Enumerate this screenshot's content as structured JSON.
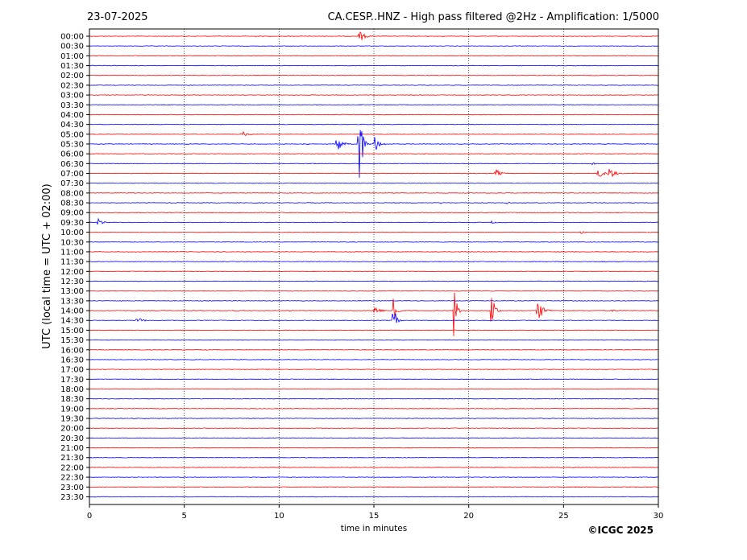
{
  "header": {
    "date": "23-07-2025",
    "title": "CA.CESP..HNZ - High pass filtered @2Hz - Amplification: 1/5000"
  },
  "footer": {
    "copyright": "©ICGC 2025"
  },
  "chart_data": {
    "type": "line",
    "title": "CA.CESP..HNZ - High pass filtered @2Hz - Amplification: 1/5000",
    "xlabel": "time in minutes",
    "ylabel": "UTC (local time = UTC + 02:00)",
    "xlim": [
      0,
      30
    ],
    "x_ticks": [
      0,
      5,
      10,
      15,
      20,
      25,
      30
    ],
    "grid": "vertical dotted lines at 5, 10, 15, 20, 25",
    "trace_colors": [
      "#ff0000",
      "#0000ff"
    ],
    "row_labels": [
      "00:00",
      "00:30",
      "01:00",
      "01:30",
      "02:00",
      "02:30",
      "03:00",
      "03:30",
      "04:00",
      "04:30",
      "05:00",
      "05:30",
      "06:00",
      "06:30",
      "07:00",
      "07:30",
      "08:00",
      "08:30",
      "09:00",
      "09:30",
      "10:00",
      "10:30",
      "11:00",
      "11:30",
      "12:00",
      "12:30",
      "13:00",
      "13:30",
      "14:00",
      "14:30",
      "15:00",
      "15:30",
      "16:00",
      "16:30",
      "17:00",
      "17:30",
      "18:00",
      "18:30",
      "19:00",
      "19:30",
      "20:00",
      "20:30",
      "21:00",
      "21:30",
      "22:00",
      "22:30",
      "23:00",
      "23:30"
    ],
    "events": [
      {
        "row": "00:00",
        "minute": 14.2,
        "amp_rows": 1.5
      },
      {
        "row": "05:00",
        "minute": 0.2,
        "amp_rows": 0.1
      },
      {
        "row": "05:00",
        "minute": 1.1,
        "amp_rows": 0.15
      },
      {
        "row": "05:00",
        "minute": 3.2,
        "amp_rows": 0.12
      },
      {
        "row": "05:00",
        "minute": 8.0,
        "amp_rows": 0.8
      },
      {
        "row": "05:30",
        "minute": 11.3,
        "amp_rows": 0.4
      },
      {
        "row": "05:30",
        "minute": 13.0,
        "amp_rows": 2.2
      },
      {
        "row": "05:30",
        "minute": 14.2,
        "amp_rows": 15.5
      },
      {
        "row": "05:30",
        "minute": 15.0,
        "amp_rows": 2.0
      },
      {
        "row": "06:00",
        "minute": 4.8,
        "amp_rows": 0.1
      },
      {
        "row": "06:00",
        "minute": 19.5,
        "amp_rows": 0.1
      },
      {
        "row": "06:30",
        "minute": 26.5,
        "amp_rows": 0.3
      },
      {
        "row": "07:00",
        "minute": 21.4,
        "amp_rows": 1.0
      },
      {
        "row": "07:00",
        "minute": 26.8,
        "amp_rows": 1.2
      },
      {
        "row": "07:00",
        "minute": 27.4,
        "amp_rows": 1.5
      },
      {
        "row": "08:30",
        "minute": 18.5,
        "amp_rows": 0.2
      },
      {
        "row": "08:30",
        "minute": 22.0,
        "amp_rows": 0.25
      },
      {
        "row": "09:00",
        "minute": 29.5,
        "amp_rows": 0.1
      },
      {
        "row": "09:30",
        "minute": 0.4,
        "amp_rows": 1.0
      },
      {
        "row": "09:30",
        "minute": 21.2,
        "amp_rows": 0.3
      },
      {
        "row": "10:00",
        "minute": 25.9,
        "amp_rows": 0.4
      },
      {
        "row": "10:30",
        "minute": 8.0,
        "amp_rows": 0.15
      },
      {
        "row": "11:30",
        "minute": 25.2,
        "amp_rows": 0.2
      },
      {
        "row": "11:30",
        "minute": 27.0,
        "amp_rows": 0.3
      },
      {
        "row": "12:00",
        "minute": 1.5,
        "amp_rows": 0.08
      },
      {
        "row": "14:00",
        "minute": 7.5,
        "amp_rows": 0.2
      },
      {
        "row": "14:00",
        "minute": 10.5,
        "amp_rows": 0.15
      },
      {
        "row": "14:00",
        "minute": 15.0,
        "amp_rows": 1.2
      },
      {
        "row": "14:00",
        "minute": 16.0,
        "amp_rows": 7.0
      },
      {
        "row": "14:00",
        "minute": 19.2,
        "amp_rows": 6.5
      },
      {
        "row": "14:00",
        "minute": 21.2,
        "amp_rows": 7.5
      },
      {
        "row": "14:00",
        "minute": 23.6,
        "amp_rows": 2.8
      },
      {
        "row": "14:00",
        "minute": 27.5,
        "amp_rows": 0.4
      },
      {
        "row": "14:30",
        "minute": 2.5,
        "amp_rows": 0.9
      },
      {
        "row": "14:30",
        "minute": 16.0,
        "amp_rows": 5.0
      },
      {
        "row": "18:30",
        "minute": 7.4,
        "amp_rows": 0.1
      },
      {
        "row": "18:30",
        "minute": 10.2,
        "amp_rows": 0.1
      },
      {
        "row": "20:30",
        "minute": 16.5,
        "amp_rows": 0.1
      },
      {
        "row": "23:00",
        "minute": 25.0,
        "amp_rows": 0.08
      }
    ]
  }
}
